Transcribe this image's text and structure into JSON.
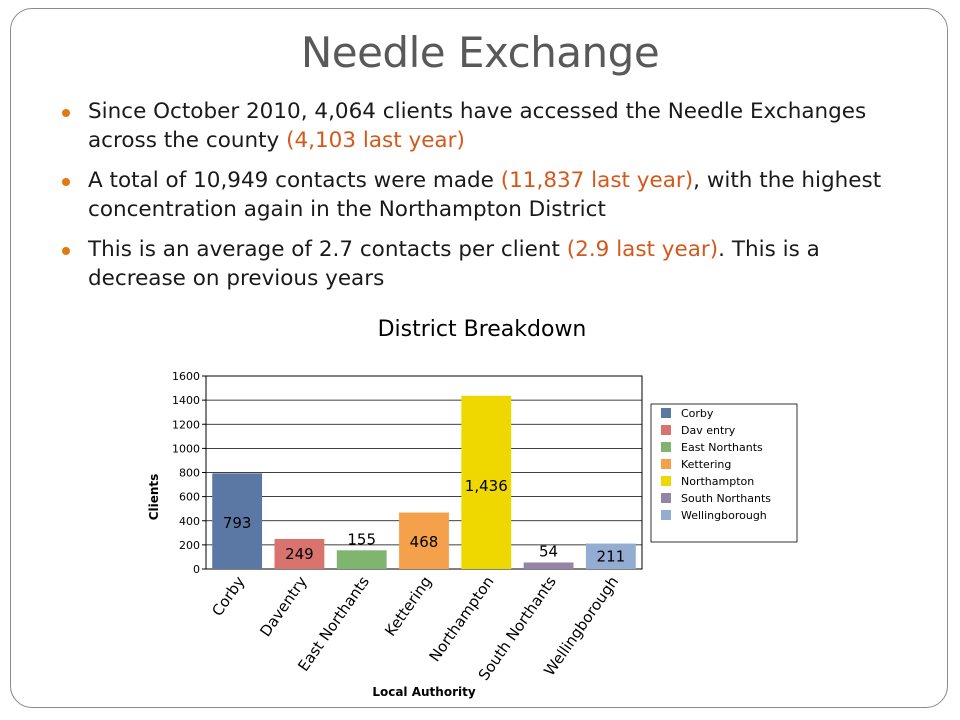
{
  "slide": {
    "title": "Needle Exchange",
    "bullets": [
      {
        "text": "Since October 2010, 4,064 clients have accessed the Needle Exchanges across the county ",
        "highlight": "(4,103 last year)",
        "tail": ""
      },
      {
        "text": "A total of 10,949 contacts were made ",
        "highlight": "(11,837 last year)",
        "tail": ", with the highest concentration again in the Northampton District"
      },
      {
        "text": "This is an average of 2.7 contacts per client ",
        "highlight": "(2.9 last year)",
        "tail": ". This is a decrease on previous years"
      }
    ],
    "highlight_color": "#d5581b",
    "bullet_color": "#e07a10"
  },
  "chart_data": {
    "type": "bar",
    "title": "District Breakdown",
    "xlabel": "Local Authority",
    "ylabel": "Clients",
    "ylim": [
      0,
      1600
    ],
    "yticks": [
      0,
      200,
      400,
      600,
      800,
      1000,
      1200,
      1400,
      1600
    ],
    "grid": true,
    "legend_position": "right",
    "categories": [
      "Corby",
      "Daventry",
      "East Northants",
      "Kettering",
      "Northampton",
      "South Northants",
      "Wellingborough"
    ],
    "legend_labels": [
      "Corby",
      "Dav entry",
      "East Northants",
      "Kettering",
      "Northampton",
      "South Northants",
      "Wellingborough"
    ],
    "values": [
      793,
      249,
      155,
      468,
      1436,
      54,
      211
    ],
    "value_labels": [
      "793",
      "249",
      "155",
      "468",
      "1,436",
      "54",
      "211"
    ],
    "colors": [
      "#5b77a3",
      "#d9736e",
      "#7fb56e",
      "#f5a04a",
      "#eed800",
      "#9485a8",
      "#93acd1"
    ]
  }
}
